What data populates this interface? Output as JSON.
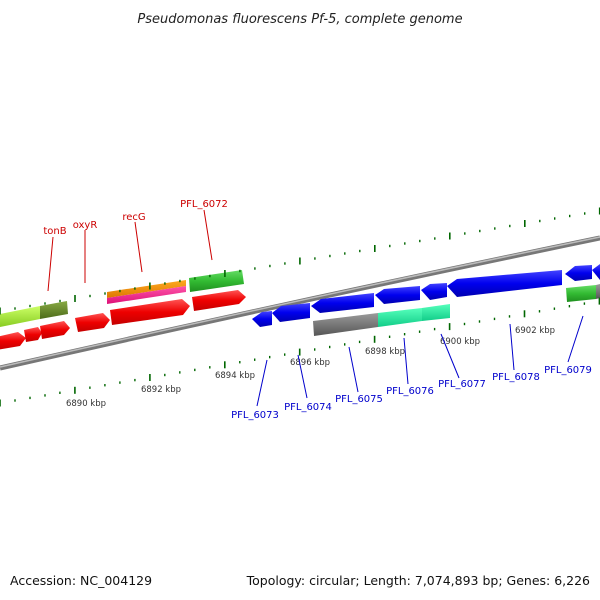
{
  "title": "Pseudomonas fluorescens Pf-5, complete genome",
  "footer": {
    "accession": "Accession: NC_004129",
    "summary": "Topology: circular; Length: 7,074,893 bp; Genes: 6,226"
  },
  "colors": {
    "backbone": "#8a8a8a",
    "forward_label": "#cc0000",
    "reverse_label": "#0000cc",
    "tick": "#006600"
  },
  "scale_labels": [
    "6890 kbp",
    "6892 kbp",
    "6894 kbp",
    "6896 kbp",
    "6898 kbp",
    "6900 kbp",
    "6902 kbp"
  ],
  "forward_labels": [
    "tonB",
    "oxyR",
    "recG",
    "PFL_6072"
  ],
  "reverse_labels": [
    "PFL_6073",
    "PFL_6074",
    "PFL_6075",
    "PFL_6076",
    "PFL_6077",
    "PFL_6078",
    "PFL_6079"
  ]
}
